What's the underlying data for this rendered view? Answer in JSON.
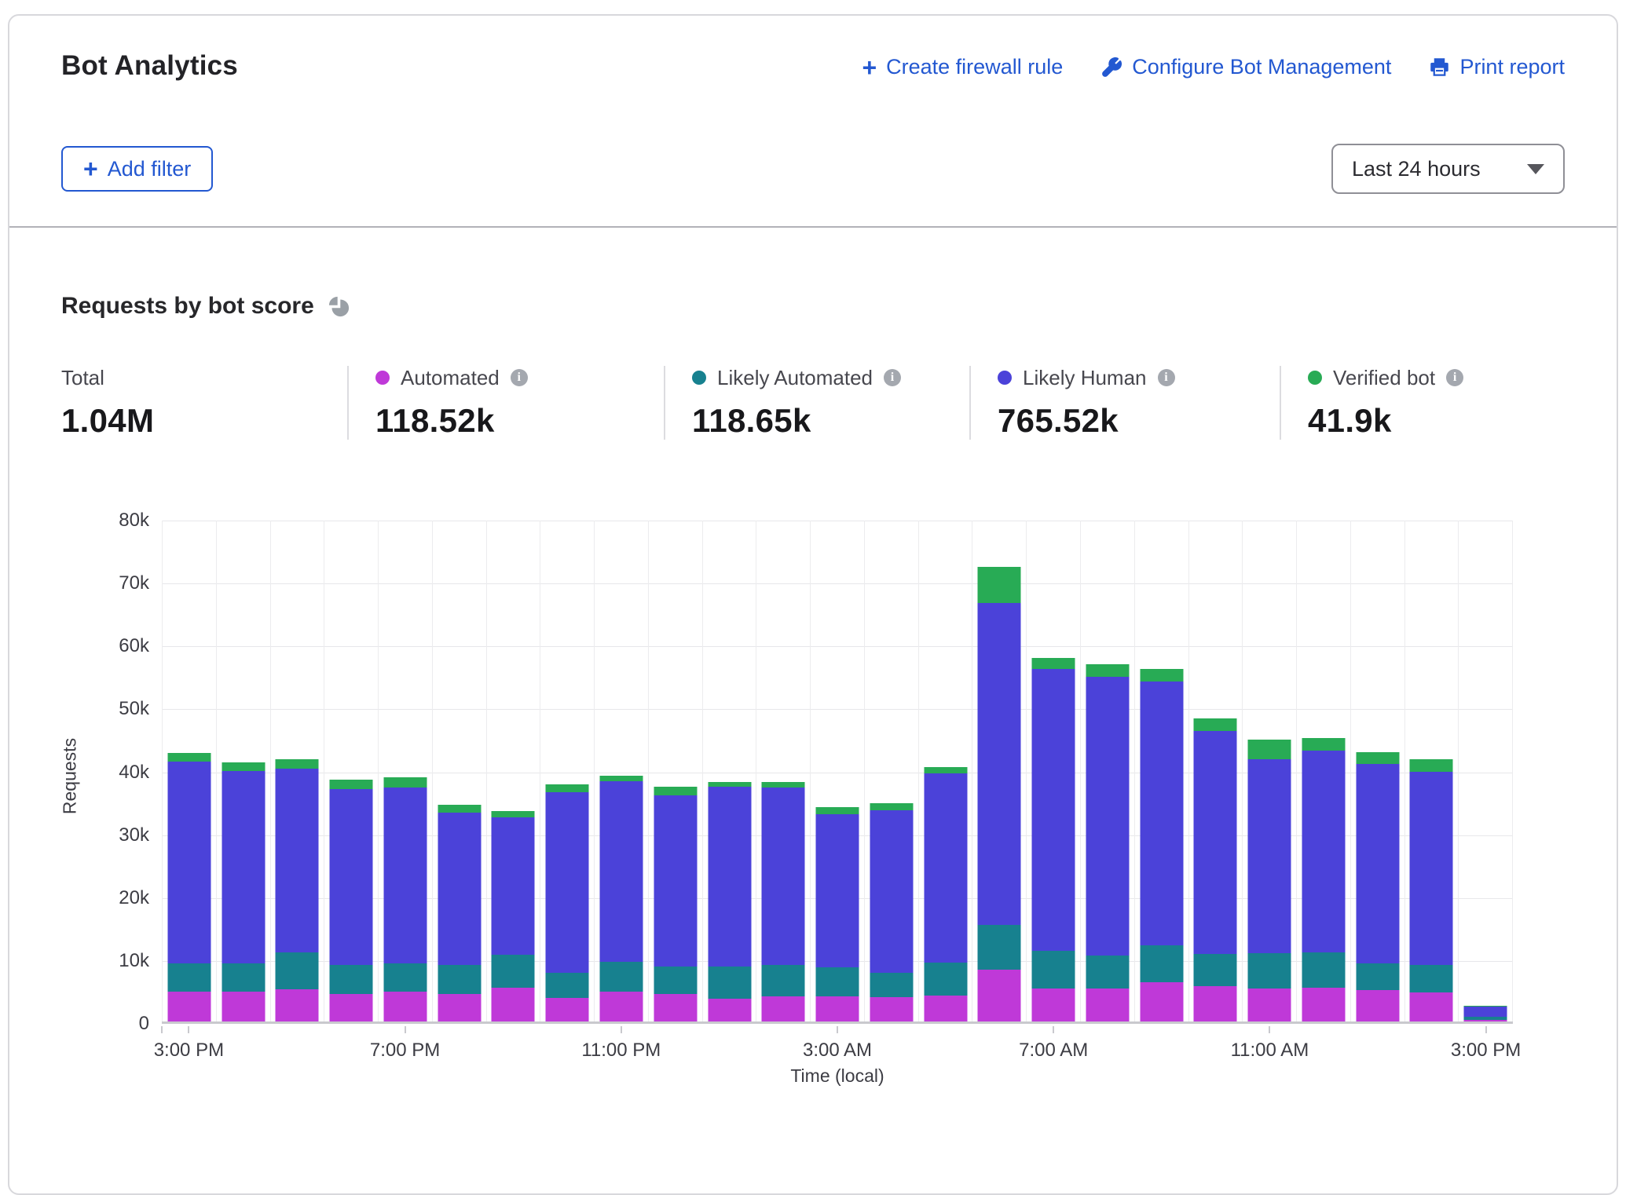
{
  "header": {
    "title": "Bot Analytics",
    "actions": [
      {
        "label": "Create firewall rule",
        "icon": "plus-icon"
      },
      {
        "label": "Configure Bot Management",
        "icon": "wrench-icon"
      },
      {
        "label": "Print report",
        "icon": "printer-icon"
      }
    ],
    "add_filter_label": "Add filter",
    "time_range_value": "Last 24 hours"
  },
  "section": {
    "title": "Requests by bot score"
  },
  "stats": {
    "items": [
      {
        "label": "Total",
        "value": "1.04M",
        "color": null
      },
      {
        "label": "Automated",
        "value": "118.52k",
        "color": "#bf39d8"
      },
      {
        "label": "Likely Automated",
        "value": "118.65k",
        "color": "#17818f"
      },
      {
        "label": "Likely Human",
        "value": "765.52k",
        "color": "#4b42d9"
      },
      {
        "label": "Verified bot",
        "value": "41.9k",
        "color": "#28ab55"
      }
    ]
  },
  "chart_data": {
    "type": "bar",
    "stacked": true,
    "title": "Requests by bot score",
    "xlabel": "Time (local)",
    "ylabel": "Requests",
    "ylim": [
      0,
      80000
    ],
    "grid": true,
    "yticks": [
      "0",
      "10k",
      "20k",
      "30k",
      "40k",
      "50k",
      "60k",
      "70k",
      "80k"
    ],
    "categories": [
      "3:00 PM",
      "4:00 PM",
      "5:00 PM",
      "6:00 PM",
      "7:00 PM",
      "8:00 PM",
      "9:00 PM",
      "10:00 PM",
      "11:00 PM",
      "12:00 AM",
      "1:00 AM",
      "2:00 AM",
      "3:00 AM",
      "4:00 AM",
      "5:00 AM",
      "6:00 AM",
      "7:00 AM",
      "8:00 AM",
      "9:00 AM",
      "10:00 AM",
      "11:00 AM",
      "12:00 PM",
      "1:00 PM",
      "2:00 PM",
      "3:00 PM"
    ],
    "xticks": [
      {
        "index": 0,
        "label": "3:00 PM"
      },
      {
        "index": 4,
        "label": "7:00 PM"
      },
      {
        "index": 8,
        "label": "11:00 PM"
      },
      {
        "index": 12,
        "label": "3:00 AM"
      },
      {
        "index": 16,
        "label": "7:00 AM"
      },
      {
        "index": 20,
        "label": "11:00 AM"
      },
      {
        "index": 24,
        "label": "3:00 PM"
      }
    ],
    "series": [
      {
        "name": "Automated",
        "color": "#bf39d8",
        "values": [
          4700,
          4800,
          5100,
          4400,
          4700,
          4400,
          5400,
          3700,
          4700,
          4400,
          3600,
          4000,
          4000,
          3900,
          4100,
          8200,
          5300,
          5200,
          6200,
          5600,
          5300,
          5400,
          5000,
          4600,
          300
        ]
      },
      {
        "name": "Likely Automated",
        "color": "#17818f",
        "values": [
          4600,
          4500,
          5900,
          4600,
          4600,
          4600,
          5200,
          4100,
          4800,
          4400,
          5200,
          5000,
          4600,
          3800,
          5300,
          7100,
          5900,
          5300,
          5900,
          5100,
          5500,
          5600,
          4200,
          4400,
          400
        ]
      },
      {
        "name": "Likely Human",
        "color": "#4b42d9",
        "values": [
          32000,
          30500,
          29200,
          27900,
          27900,
          24200,
          21800,
          28700,
          28700,
          27100,
          28500,
          28200,
          24300,
          25900,
          30000,
          51200,
          44800,
          44300,
          42000,
          35500,
          30900,
          32000,
          31800,
          30700,
          1700
        ]
      },
      {
        "name": "Verified bot",
        "color": "#28ab55",
        "values": [
          1400,
          1400,
          1500,
          1500,
          1600,
          1200,
          1000,
          1200,
          900,
          1400,
          800,
          900,
          1200,
          1100,
          1100,
          5800,
          1800,
          2000,
          2000,
          2000,
          3100,
          2000,
          1800,
          2000,
          100
        ]
      }
    ]
  }
}
